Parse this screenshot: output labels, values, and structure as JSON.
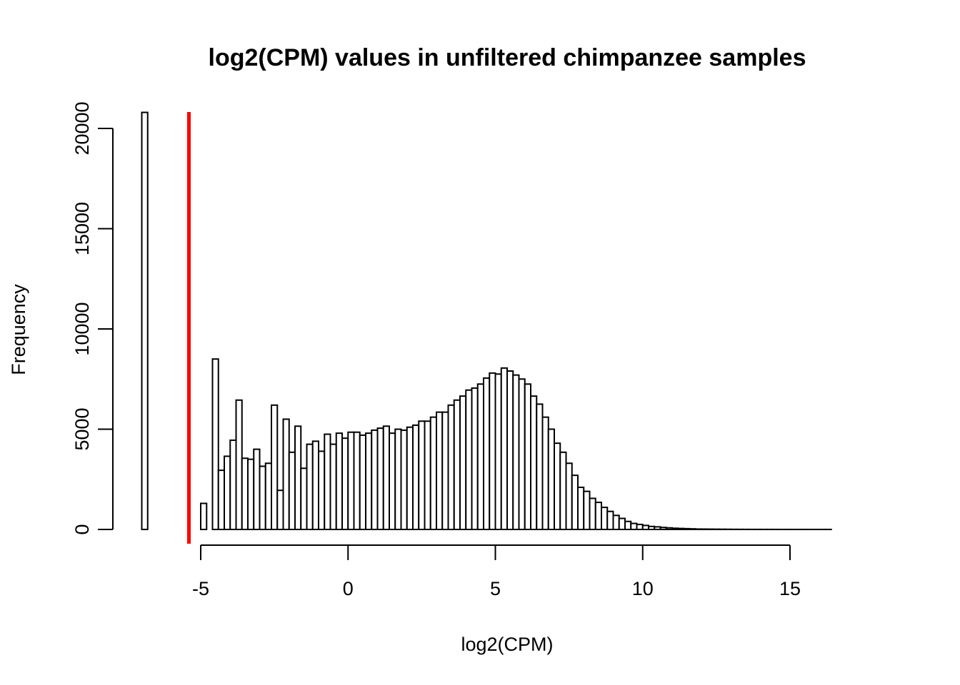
{
  "chart_data": {
    "type": "bar",
    "title": "log2(CPM) values in unfiltered chimpanzee samples",
    "xlabel": "log2(CPM)",
    "ylabel": "Frequency",
    "xlim": [
      -7.2,
      17.8
    ],
    "ylim": [
      0,
      20800
    ],
    "x_ticks": [
      -5,
      0,
      5,
      10,
      15
    ],
    "y_ticks": [
      0,
      5000,
      10000,
      15000,
      20000
    ],
    "bin_width": 0.2,
    "bin_start": -7.0,
    "values": [
      20800,
      0,
      0,
      0,
      0,
      0,
      0,
      0,
      0,
      0,
      1300,
      0,
      8500,
      2950,
      3650,
      4450,
      6450,
      3550,
      3500,
      4000,
      3150,
      3300,
      6200,
      1950,
      5500,
      3850,
      5150,
      3050,
      4250,
      4400,
      3900,
      4750,
      4250,
      4800,
      4550,
      4850,
      4850,
      4700,
      4800,
      4950,
      5050,
      5150,
      4800,
      5000,
      4950,
      5100,
      5200,
      5400,
      5400,
      5600,
      5850,
      5850,
      6200,
      6450,
      6650,
      6950,
      7050,
      7250,
      7550,
      7800,
      7750,
      8050,
      7900,
      7700,
      7500,
      7250,
      6650,
      6250,
      5600,
      5000,
      4300,
      3850,
      3300,
      2700,
      2100,
      1900,
      1550,
      1350,
      1100,
      900,
      700,
      550,
      400,
      300,
      250,
      200,
      150,
      130,
      100,
      80,
      60,
      50,
      40,
      30,
      20,
      18,
      15,
      12,
      10,
      8,
      6,
      5,
      4,
      3,
      3,
      2,
      2,
      2,
      1,
      1,
      1,
      1,
      1,
      1,
      1,
      1,
      1,
      0,
      0,
      0,
      0,
      0,
      0,
      0
    ],
    "reference_line": {
      "x": -5.4,
      "color": "#ff0000"
    },
    "colors": {
      "bar_fill": "#ffffff",
      "bar_stroke": "#000000",
      "axis": "#000000"
    },
    "grid": false,
    "legend": "none"
  }
}
